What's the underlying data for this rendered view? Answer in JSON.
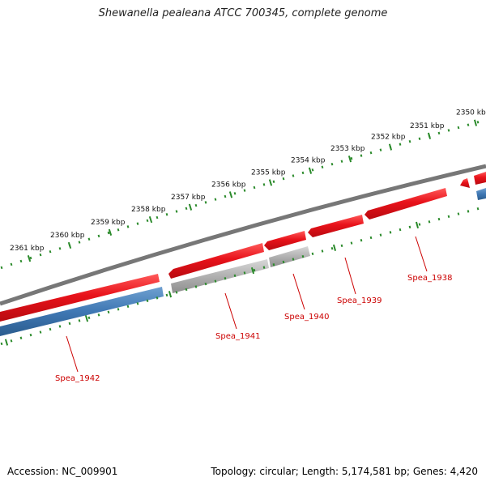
{
  "title": "Shewanella pealeana ATCC 700345, complete genome",
  "accession": "Accession: NC_009901",
  "summary": "Topology: circular; Length: 5,174,581 bp; Genes: 4,420",
  "ticks": [
    {
      "label": "2350 kbp"
    },
    {
      "label": "2351 kbp"
    },
    {
      "label": "2352 kbp"
    },
    {
      "label": "2353 kbp"
    },
    {
      "label": "2354 kbp"
    },
    {
      "label": "2355 kbp"
    },
    {
      "label": "2356 kbp"
    },
    {
      "label": "2357 kbp"
    },
    {
      "label": "2358 kbp"
    },
    {
      "label": "2359 kbp"
    },
    {
      "label": "2360 kbp"
    },
    {
      "label": "2361 kbp"
    }
  ],
  "genes": [
    {
      "label": "Spea_1938",
      "color": "#e8121a"
    },
    {
      "label": "Spea_1939",
      "color": "#e8121a"
    },
    {
      "label": "Spea_1940",
      "color": "#a8a8a8"
    },
    {
      "label": "Spea_1941",
      "color": "#a8a8a8"
    },
    {
      "label": "Spea_1942",
      "color": "#3f78b4"
    }
  ],
  "colors": {
    "backbone": "#7a7a7a",
    "tick": "#2a8a2a",
    "forward_gene": "#e8121a",
    "reverse_gene": "#3f78b4",
    "pseudo_gene": "#a8a8a8",
    "label": "#cc0000"
  }
}
